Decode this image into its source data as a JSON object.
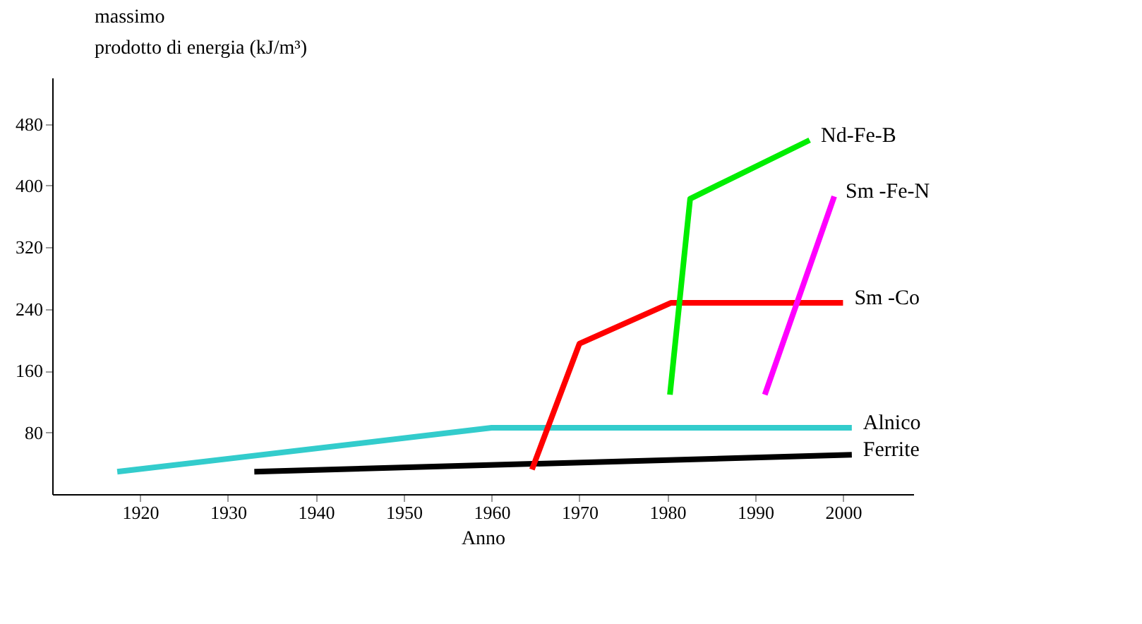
{
  "chart_data": {
    "type": "line",
    "xlabel": "Anno",
    "ylabel": "massimo\nprodotto di energia (kJ/m³)",
    "xlim": [
      1910,
      2008
    ],
    "xticks": [
      1920,
      1930,
      1940,
      1950,
      1960,
      1970,
      1980,
      1990,
      2000
    ],
    "ylim": [
      0,
      540
    ],
    "yticks": [
      80,
      160,
      240,
      320,
      400,
      480
    ],
    "grid": false,
    "marker": "none",
    "line_style": "solid",
    "series": [
      {
        "name": "Alnico",
        "color": "#33cccc",
        "x": [
          1917.4,
          1960,
          2001
        ],
        "values": [
          29,
          86,
          86
        ]
      },
      {
        "name": "Ferrite",
        "color": "#000000",
        "x": [
          1933,
          2001
        ],
        "values": [
          29,
          51
        ]
      },
      {
        "name": "Sm -Co",
        "color": "#ff0000",
        "x": [
          1964.6,
          1970,
          1980.4,
          2000
        ],
        "values": [
          32,
          195,
          248,
          248
        ]
      },
      {
        "name": "Nd-Fe-B",
        "color": "#00ee00",
        "x": [
          1980.3,
          1982.6,
          1996.2
        ],
        "values": [
          129,
          383,
          459
        ]
      },
      {
        "name": "Sm -Fe-N",
        "color": "#ff00ff",
        "x": [
          1991.1,
          1999
        ],
        "values": [
          129,
          386
        ]
      }
    ]
  }
}
